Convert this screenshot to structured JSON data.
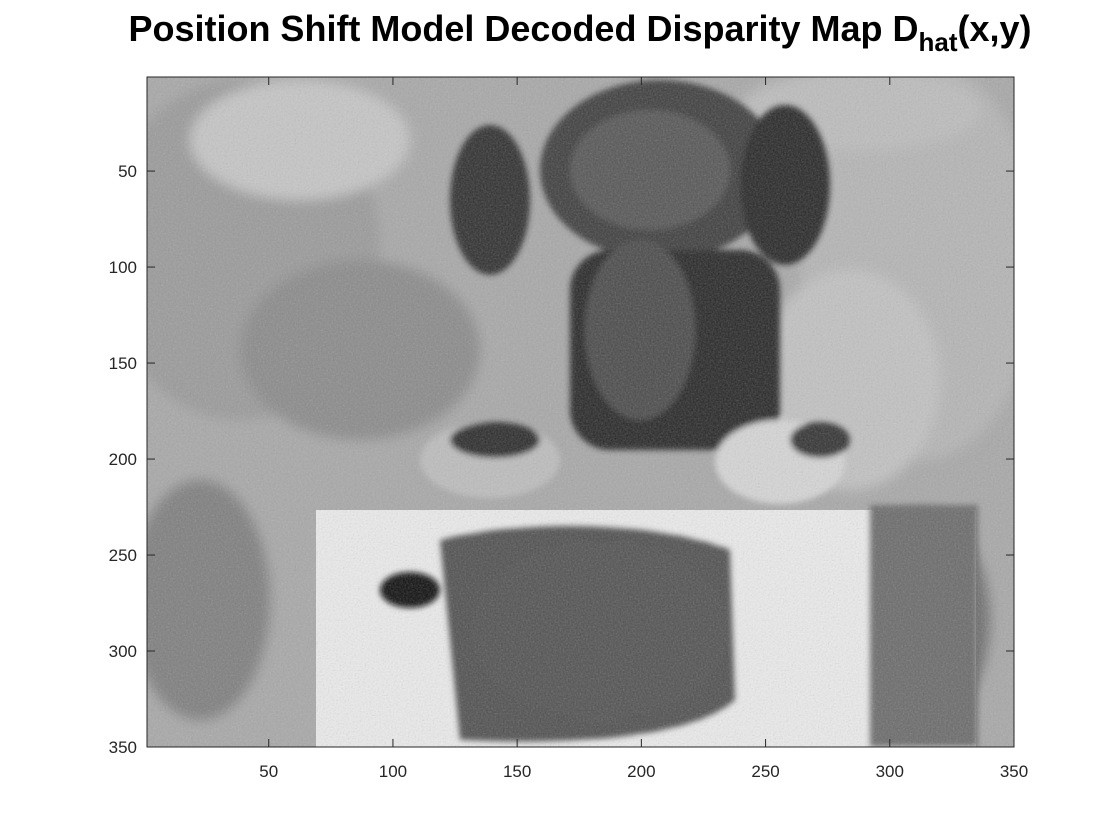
{
  "chart_data": {
    "type": "heatmap",
    "title": {
      "main": "Position Shift Model Decoded Disparity Map D",
      "subscript": "hat",
      "suffix": "(x,y)"
    },
    "colormap": "gray",
    "xlim": [
      1,
      350
    ],
    "ylim": [
      1,
      350
    ],
    "y_reversed": true,
    "x_ticks": [
      50,
      100,
      150,
      200,
      250,
      300,
      350
    ],
    "y_ticks": [
      50,
      100,
      150,
      200,
      250,
      300,
      350
    ],
    "x_tick_labels": [
      "50",
      "100",
      "150",
      "200",
      "250",
      "300",
      "350"
    ],
    "y_tick_labels": [
      "50",
      "100",
      "150",
      "200",
      "250",
      "300",
      "350"
    ],
    "grid": false,
    "colors": {
      "axis": "#262626",
      "light": "#e6e6e6",
      "dark": "#1a1a1a"
    }
  }
}
